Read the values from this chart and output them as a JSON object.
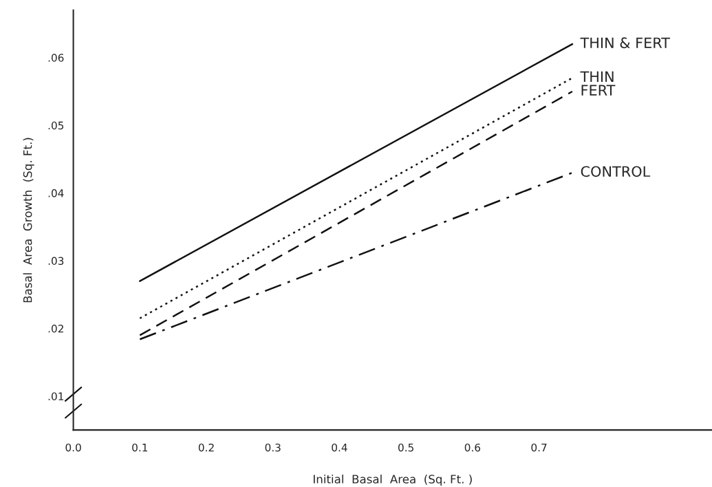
{
  "chart_data": {
    "type": "line",
    "xlabel": "Initial  Basal  Area  (Sq. Ft. )",
    "ylabel": "Basal  Area  Growth  (Sq. Ft.)",
    "x": [
      0.1,
      0.75
    ],
    "series": [
      {
        "name": "THIN & FERT",
        "color": "#111111",
        "values": [
          0.027,
          0.062
        ],
        "line_style": "solid"
      },
      {
        "name": "THIN",
        "color": "#111111",
        "values": [
          0.0215,
          0.057
        ],
        "line_style": "dotted"
      },
      {
        "name": "FERT",
        "color": "#111111",
        "values": [
          0.019,
          0.055
        ],
        "line_style": "dashed"
      },
      {
        "name": "CONTROL",
        "color": "#111111",
        "values": [
          0.0184,
          0.043
        ],
        "line_style": "dashdot"
      }
    ],
    "xlim": [
      0,
      0.96
    ],
    "ylim": [
      0.005,
      0.067
    ],
    "xticks": [
      {
        "value": 0,
        "label": "0.0"
      },
      0.1,
      0.2,
      0.3,
      0.4,
      0.5,
      0.6,
      0.7
    ],
    "yticks": [
      {
        "value": 0.01,
        "label": ".01"
      },
      {
        "value": 0.02,
        "label": ".02"
      },
      {
        "value": 0.03,
        "label": ".03"
      },
      {
        "value": 0.04,
        "label": ".04"
      },
      {
        "value": 0.05,
        "label": ".05"
      },
      {
        "value": 0.06,
        "label": ".06"
      }
    ],
    "grid": false,
    "legend": false,
    "marker": "none"
  }
}
